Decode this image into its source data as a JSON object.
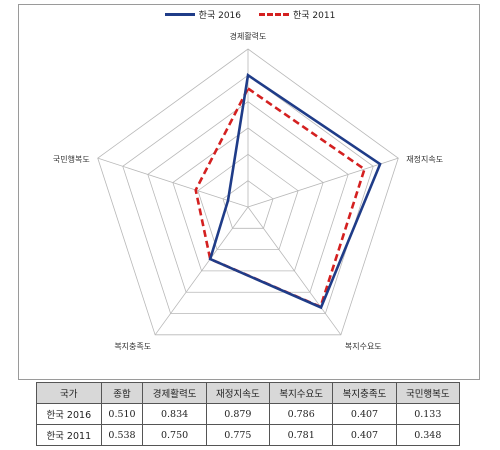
{
  "legend": [
    {
      "name": "한국 2016",
      "color": "#1f3c88",
      "style": "solid"
    },
    {
      "name": "한국 2011",
      "color": "#d42020",
      "style": "dashed"
    }
  ],
  "chart_data": {
    "type": "radar",
    "axes": [
      "경제활력도",
      "재정지속도",
      "복지수요도",
      "복지충족도",
      "국민행복도"
    ],
    "range": [
      0,
      1
    ],
    "rings": 6,
    "series": [
      {
        "name": "한국 2016",
        "values": [
          0.834,
          0.879,
          0.786,
          0.407,
          0.133
        ],
        "color": "#1f3c88",
        "style": "solid"
      },
      {
        "name": "한국 2011",
        "values": [
          0.75,
          0.775,
          0.781,
          0.407,
          0.348
        ],
        "color": "#d42020",
        "style": "dashed"
      }
    ],
    "legend_position": "top-center"
  },
  "table": {
    "headers": [
      "국가",
      "종합",
      "경제활력도",
      "재정지속도",
      "복지수요도",
      "복지충족도",
      "국민행복도"
    ],
    "rows": [
      [
        "한국 2016",
        "0.510",
        "0.834",
        "0.879",
        "0.786",
        "0.407",
        "0.133"
      ],
      [
        "한국 2011",
        "0.538",
        "0.750",
        "0.775",
        "0.781",
        "0.407",
        "0.348"
      ]
    ]
  }
}
